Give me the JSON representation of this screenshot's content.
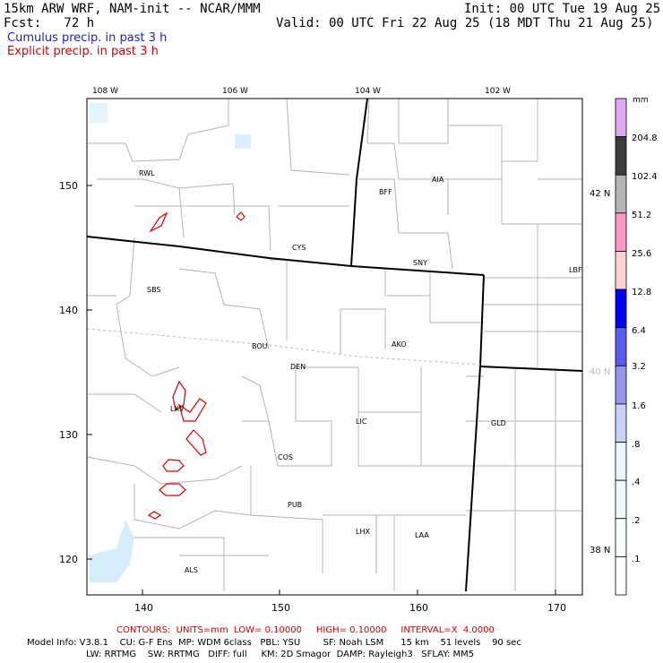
{
  "header": {
    "model_title": "15km ARW WRF, NAM-init -- NCAR/MMM",
    "init": "Init: 00 UTC Tue 19 Aug 25",
    "fcst": "Fcst:   72 h",
    "valid": "Valid: 00 UTC Fri 22 Aug 25 (18 MDT Thu 21 Aug 25)",
    "legend_cumulus": "Cumulus precip. in past 3 h",
    "legend_explicit": "Explicit precip. in past 3 h"
  },
  "map": {
    "top_lon_labels": [
      "108 W",
      "106 W",
      "104 W",
      "102 W"
    ],
    "right_lat_labels": [
      "42 N",
      "40 N",
      "38 N"
    ],
    "left_grid_labels": [
      "150",
      "140",
      "130",
      "120"
    ],
    "bottom_grid_labels": [
      "140",
      "150",
      "160",
      "170"
    ],
    "stations": [
      "RWL",
      "BFF",
      "AIA",
      "CYS",
      "SNY",
      "LBF",
      "SBS",
      "BOU",
      "AKO",
      "DEN",
      "LXV",
      "LIC",
      "GLD",
      "COS",
      "PUB",
      "LHX",
      "LAA",
      "ALS"
    ]
  },
  "colorbar": {
    "unit": "mm",
    "labels": [
      "204.8",
      "102.4",
      "51.2",
      "25.6",
      "12.8",
      "6.4",
      "3.2",
      "1.6",
      ".8",
      ".4",
      ".2",
      ".1"
    ],
    "colors": [
      "#e0aaf0",
      "#3c3c3c",
      "#b4b4b4",
      "#ff96c8",
      "#ffd2d2",
      "#0000ff",
      "#5a5af0",
      "#9696f0",
      "#c8d2f5",
      "#e6f5ff",
      "#eafaf8",
      "#f5fafa",
      "#ffffff"
    ]
  },
  "footer": {
    "contours": "CONTOURS:  UNITS=mm  LOW= 0.10000     HIGH= 0.10000     INTERVAL=X  4.0000",
    "model_info_1": "Model Info: V3.8.1    CU: G-F Ens  MP: WDM 6class   PBL: YSU        SF: Noah LSM      15 km    51 levels    90 sec",
    "model_info_2": "LW: RRTMG    SW: RRTMG   DIFF: full     KM: 2D Smagor  DAMP: Rayleigh3   SFLAY: MM5"
  }
}
